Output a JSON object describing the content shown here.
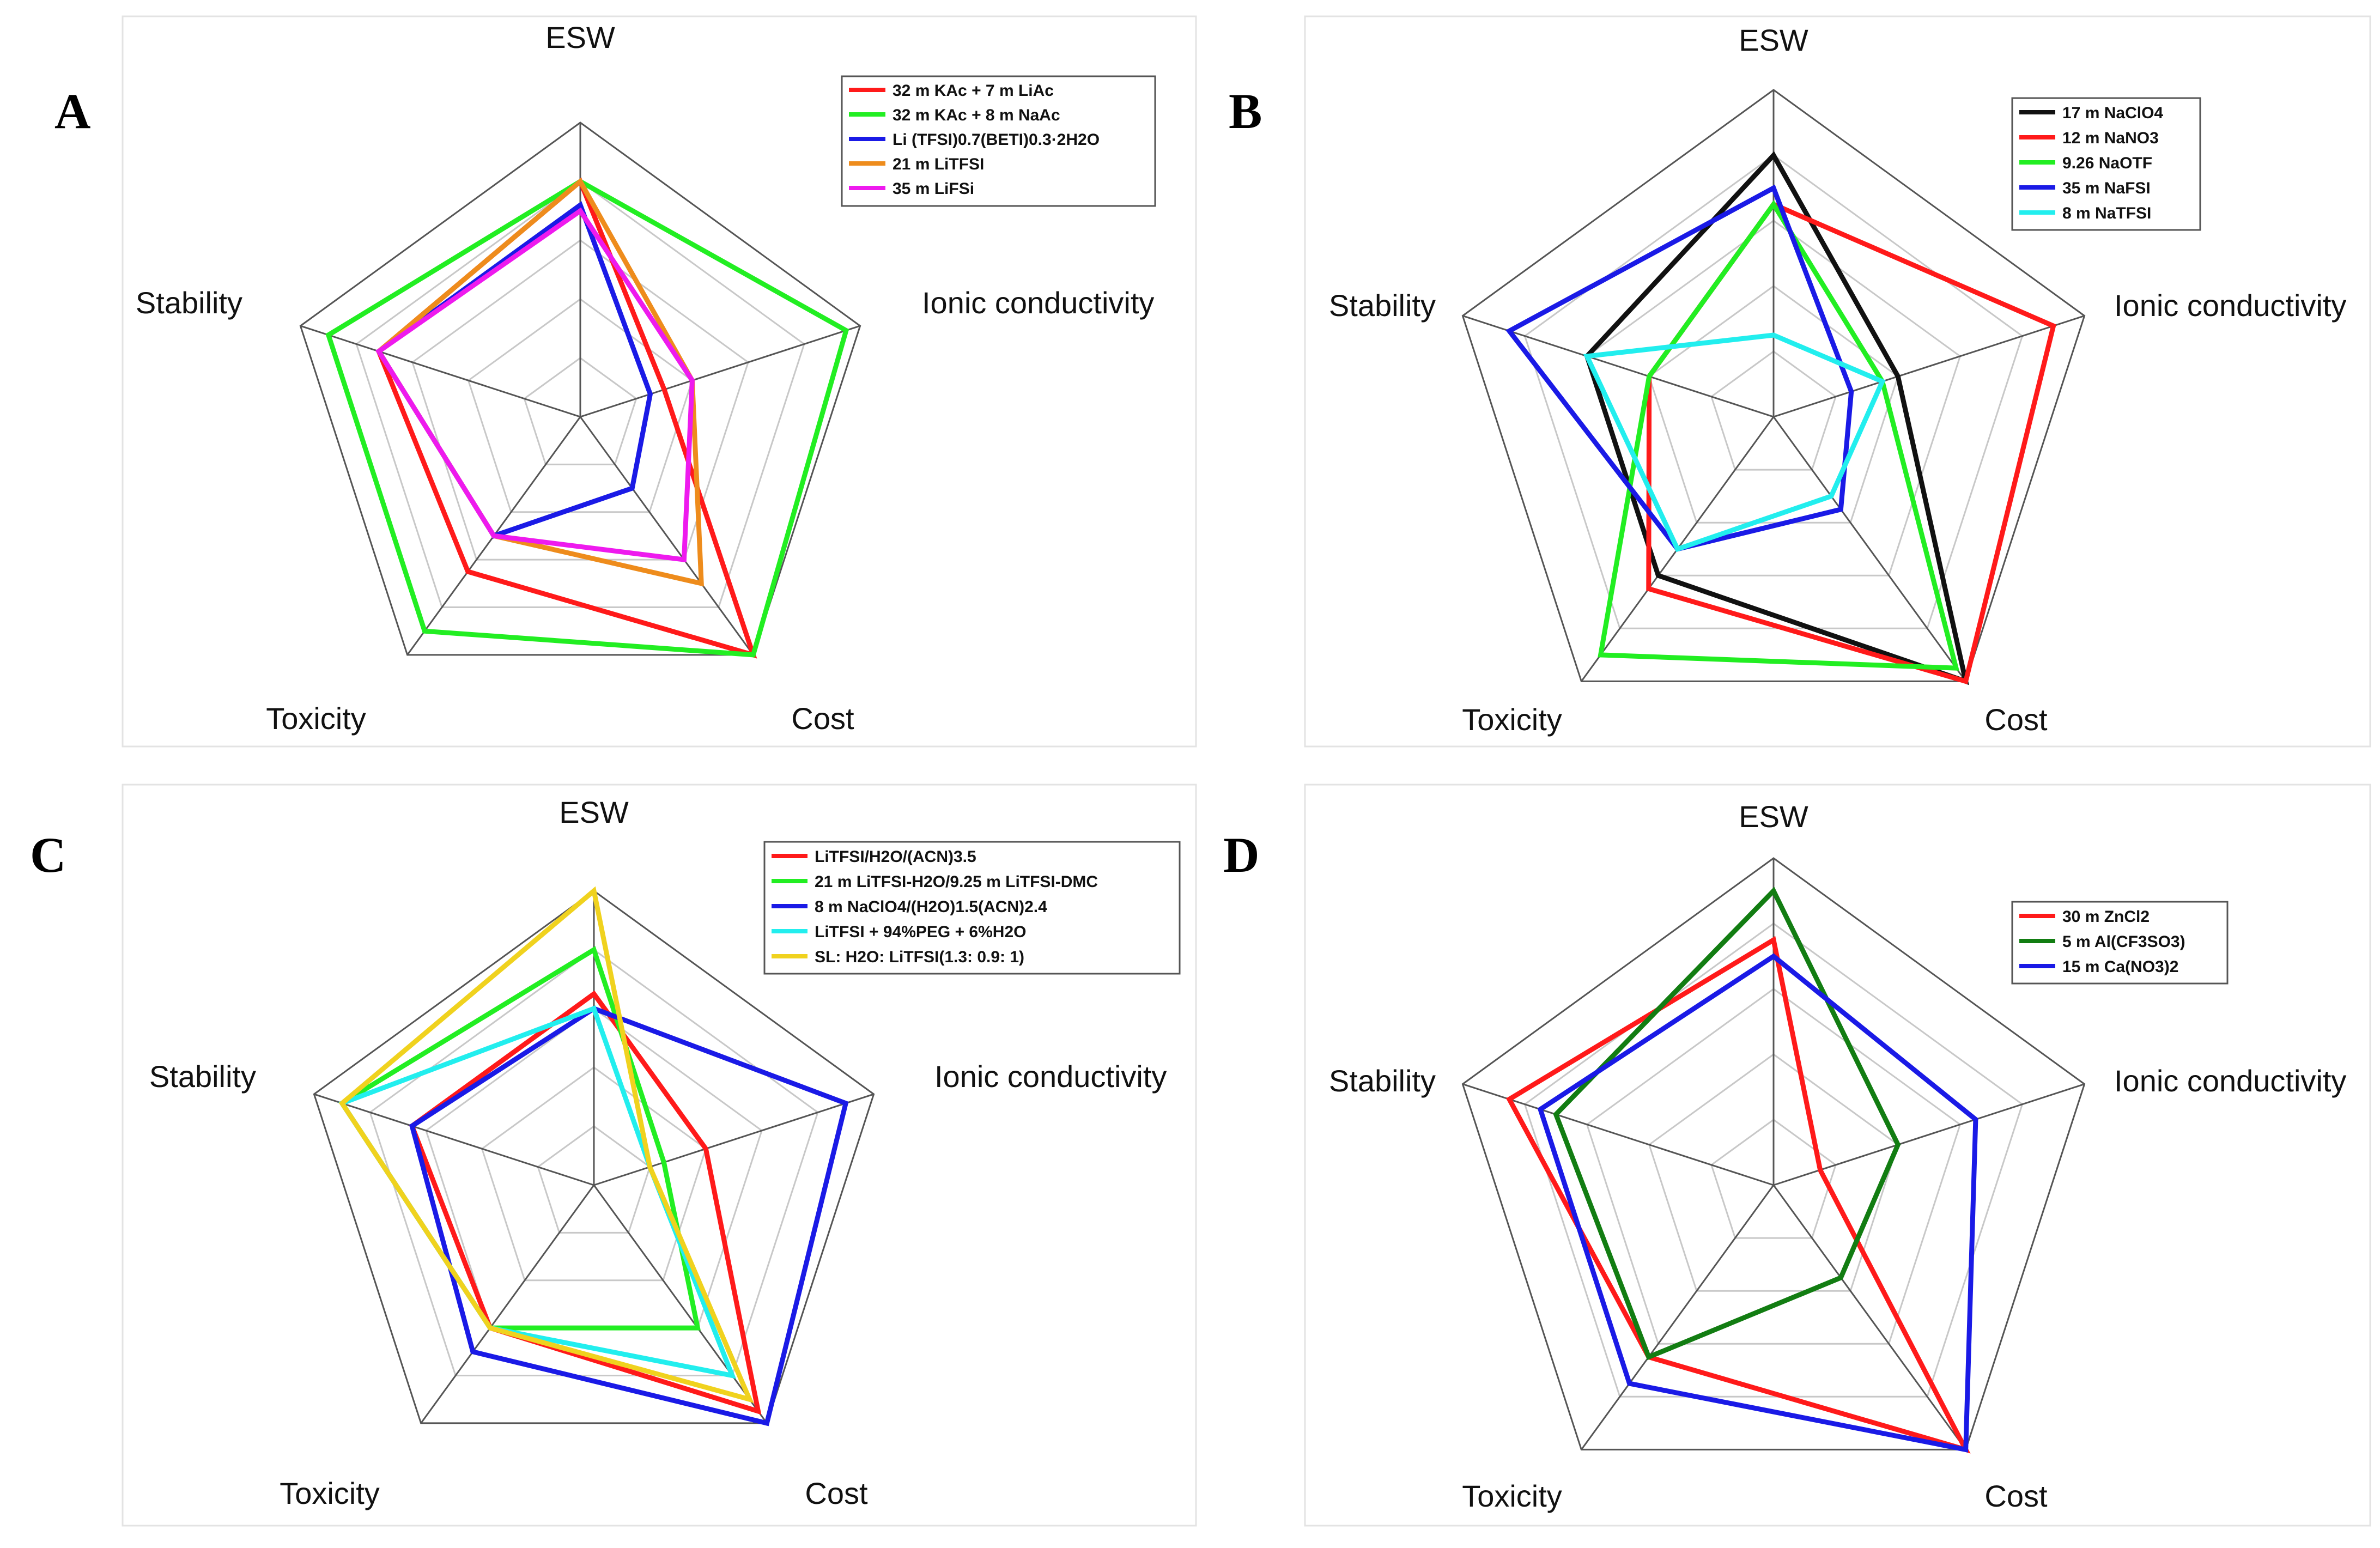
{
  "chart_data": [
    {
      "type": "radar",
      "panel_label": "A",
      "axes": [
        "ESW",
        "Ionic conductivity",
        "Cost",
        "Toxicity",
        "Stability"
      ],
      "rmax": 5,
      "grid_levels": 5,
      "legend_position": "top-right",
      "series": [
        {
          "name": "32 m KAc + 7 m LiAc",
          "color": "#ff1a1a",
          "values": [
            4.0,
            1.5,
            5.0,
            3.25,
            3.6
          ]
        },
        {
          "name": "32 m KAc + 8 m NaAc",
          "color": "#22ee22",
          "values": [
            4.0,
            4.75,
            5.0,
            4.5,
            4.5
          ]
        },
        {
          "name": "Li (TFSI)0.7(BETI)0.3·2H2O",
          "color": "#1a1ae6",
          "values": [
            3.6,
            1.25,
            1.5,
            2.5,
            3.6
          ]
        },
        {
          "name": " 21 m LiTFSI",
          "color": "#ee8c1c",
          "values": [
            4.0,
            2.0,
            3.5,
            2.5,
            3.6
          ]
        },
        {
          "name": "35 m LiFSi",
          "color": "#ee1aee",
          "values": [
            3.5,
            2.0,
            3.0,
            2.5,
            3.6
          ]
        }
      ]
    },
    {
      "type": "radar",
      "panel_label": "B",
      "axes": [
        "ESW",
        "Ionic conductivity",
        "Cost",
        "Toxicity",
        "Stability"
      ],
      "rmax": 5,
      "grid_levels": 5,
      "legend_position": "top-right",
      "series": [
        {
          "name": "17 m NaClO4",
          "color": "#111111",
          "values": [
            4.0,
            2.0,
            5.0,
            3.0,
            3.0
          ]
        },
        {
          "name": "12 m NaNO3",
          "color": "#ff1a1a",
          "values": [
            3.25,
            4.5,
            5.0,
            3.25,
            2.0
          ]
        },
        {
          "name": "9.26 NaOTF",
          "color": "#22ee22",
          "values": [
            3.25,
            1.75,
            4.75,
            4.5,
            2.0
          ]
        },
        {
          "name": "35 m NaFSI",
          "color": "#1a1ae6",
          "values": [
            3.5,
            1.25,
            1.75,
            2.5,
            4.25
          ]
        },
        {
          "name": "8 m NaTFSI",
          "color": "#22eeee",
          "values": [
            1.25,
            1.75,
            1.5,
            2.5,
            3.0
          ]
        }
      ]
    },
    {
      "type": "radar",
      "panel_label": "C",
      "axes": [
        "ESW",
        "Ionic conductivity",
        "Cost",
        "Toxicity",
        "Stability"
      ],
      "rmax": 5,
      "grid_levels": 5,
      "legend_position": "top-right",
      "series": [
        {
          "name": "LiTFSI/H2O/(ACN)3.5",
          "color": "#ff1a1a",
          "values": [
            3.25,
            2.0,
            4.75,
            3.0,
            3.25
          ]
        },
        {
          "name": "21 m LiTFSI-H2O/9.25 m LiTFSI-DMC",
          "color": "#22ee22",
          "values": [
            4.0,
            1.25,
            3.0,
            3.0,
            4.5
          ]
        },
        {
          "name": "8 m NaClO4/(H2O)1.5(ACN)2.4",
          "color": "#1a1ae6",
          "values": [
            3.0,
            4.5,
            5.0,
            3.5,
            3.25
          ]
        },
        {
          "name": "LiTFSI + 94%PEG + 6%H2O",
          "color": "#22eeee",
          "values": [
            3.0,
            1.0,
            4.0,
            3.0,
            4.5
          ]
        },
        {
          "name": "SL: H2O: LiTFSI(1.3: 0.9: 1)",
          "color": "#f0d21e",
          "values": [
            5.0,
            1.0,
            4.5,
            3.0,
            4.5
          ]
        }
      ]
    },
    {
      "type": "radar",
      "panel_label": "D",
      "axes": [
        "ESW",
        "Ionic conductivity",
        "Cost",
        "Toxicity",
        "Stability"
      ],
      "rmax": 5,
      "grid_levels": 5,
      "legend_position": "top-right",
      "series": [
        {
          "name": "30 m ZnCl2",
          "color": "#ff1a1a",
          "values": [
            3.75,
            0.75,
            5.0,
            3.25,
            4.25
          ]
        },
        {
          "name": "5 m Al(CF3SO3)",
          "color": "#127d12",
          "values": [
            4.5,
            2.0,
            1.75,
            3.25,
            3.5
          ]
        },
        {
          "name": "15 m Ca(NO3)2",
          "color": "#1a1ae6",
          "values": [
            3.5,
            3.25,
            5.0,
            3.75,
            3.75
          ]
        }
      ]
    }
  ]
}
